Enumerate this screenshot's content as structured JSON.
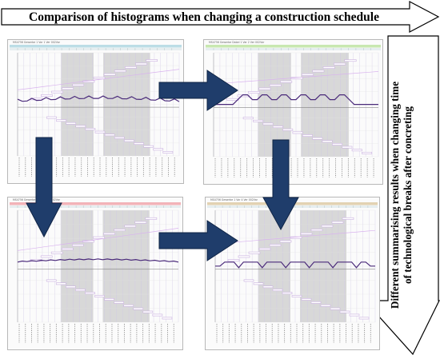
{
  "title": "Comparison of histograms when changing a construction schedule",
  "side_label": {
    "line1": "Different summarising results when changing time",
    "line2": "of technological breaks after concreting"
  },
  "panels": [
    {
      "id": "top-left",
      "caption": "MS4756  Gewerbe 1 Var 1 Ver 002Var",
      "accent": "#bcdde6",
      "variant": 0
    },
    {
      "id": "top-right",
      "caption": "MS4756  Gewerbe Dabei 1 Var 2 Ver 002Var",
      "accent": "#c8e8b0",
      "variant": 1
    },
    {
      "id": "bottom-left",
      "caption": "MS4756  Gewerbe 1 Var 3 Ver 002Var",
      "accent": "#f2b3b8",
      "variant": 2
    },
    {
      "id": "bottom-right",
      "caption": "MS4756  Gewerbe 1 Var 4 Ver 002Var",
      "accent": "#e2d2b2",
      "variant": 3
    }
  ],
  "colors": {
    "arrow_blue": "#1f3d6b",
    "histogram_line": "#4a2a7a",
    "bar_fill": "#c9b0df",
    "grid_shade": "#d8d8d8"
  }
}
